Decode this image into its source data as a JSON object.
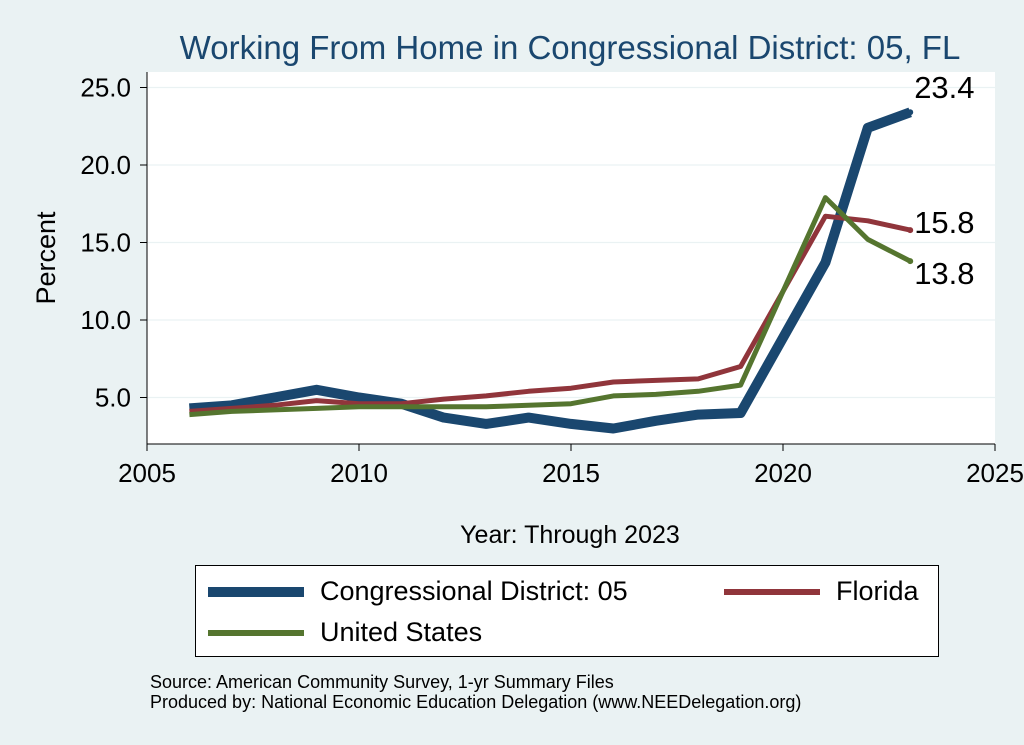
{
  "chart_data": {
    "type": "line",
    "title": "Working From Home in Congressional District: 05, FL",
    "xlabel": "Year: Through 2023",
    "ylabel": "Percent",
    "xlim": [
      2005,
      2025
    ],
    "ylim": [
      2.0,
      26.0
    ],
    "xticks": [
      "2005",
      "2010",
      "2015",
      "2020",
      "2025"
    ],
    "yticks": [
      "5.0",
      "10.0",
      "15.0",
      "20.0",
      "25.0"
    ],
    "grid": true,
    "legend_position": "bottom",
    "x": [
      2006,
      2007,
      2008,
      2009,
      2010,
      2011,
      2012,
      2013,
      2014,
      2015,
      2016,
      2017,
      2018,
      2019,
      2021,
      2022,
      2023
    ],
    "series": [
      {
        "name": "Congressional District: 05",
        "color": "#1a476f",
        "values": [
          4.3,
          4.5,
          5.0,
          5.5,
          5.0,
          4.6,
          3.7,
          3.3,
          3.7,
          3.3,
          3.0,
          3.5,
          3.9,
          4.0,
          13.7,
          22.4,
          23.4
        ],
        "end_label": "23.4"
      },
      {
        "name": "Florida",
        "color": "#90353b",
        "values": [
          4.1,
          4.3,
          4.5,
          4.8,
          4.6,
          4.6,
          4.9,
          5.1,
          5.4,
          5.6,
          6.0,
          6.1,
          6.2,
          7.0,
          16.7,
          16.4,
          15.8
        ],
        "end_label": "15.8"
      },
      {
        "name": "United States",
        "color": "#55752f",
        "values": [
          3.9,
          4.1,
          4.2,
          4.3,
          4.4,
          4.4,
          4.4,
          4.4,
          4.5,
          4.6,
          5.1,
          5.2,
          5.4,
          5.8,
          17.9,
          15.2,
          13.8
        ],
        "end_label": "13.8"
      }
    ]
  },
  "source_lines": [
    "Source: American Community Survey, 1-yr Summary Files",
    "Produced by: National Economic Education Delegation (www.NEEDelegation.org)"
  ]
}
